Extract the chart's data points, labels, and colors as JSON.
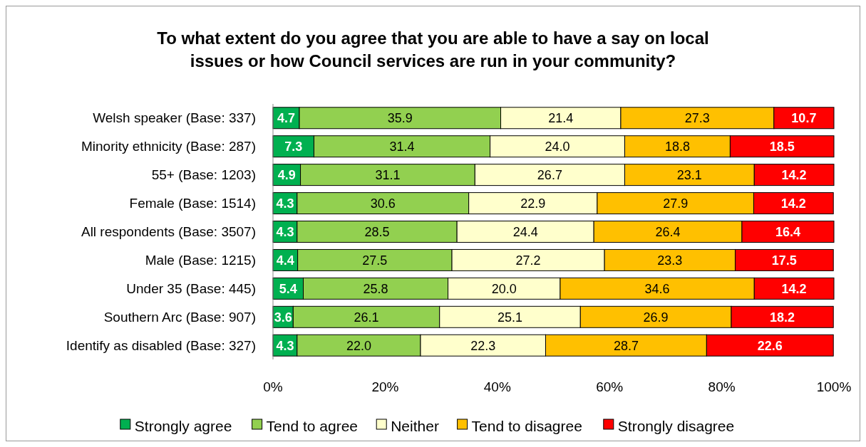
{
  "chart_data": {
    "type": "bar",
    "orientation": "horizontal",
    "stacked": true,
    "title": "To what extent do you agree that you are able to have a say on local issues or how Council services are run in your community?",
    "categories": [
      "Welsh speaker (Base: 337)",
      "Minority ethnicity (Base: 287)",
      "55+ (Base: 1203)",
      "Female (Base: 1514)",
      "All respondents (Base: 3507)",
      "Male (Base: 1215)",
      "Under 35 (Base: 445)",
      "Southern Arc (Base: 907)",
      "Identify as disabled (Base: 327)"
    ],
    "series": [
      {
        "name": "Strongly agree",
        "color": "#00b050",
        "values": [
          4.7,
          7.3,
          4.9,
          4.3,
          4.3,
          4.4,
          5.4,
          3.6,
          4.3
        ]
      },
      {
        "name": "Tend to agree",
        "color": "#92d050",
        "values": [
          35.9,
          31.4,
          31.1,
          30.6,
          28.5,
          27.5,
          25.8,
          26.1,
          22.0
        ]
      },
      {
        "name": "Neither",
        "color": "#ffffcc",
        "values": [
          21.4,
          24.0,
          26.7,
          22.9,
          24.4,
          27.2,
          20.0,
          25.1,
          22.3
        ]
      },
      {
        "name": "Tend to disagree",
        "color": "#ffc000",
        "values": [
          27.3,
          18.8,
          23.1,
          27.9,
          26.4,
          23.3,
          34.6,
          26.9,
          28.7
        ]
      },
      {
        "name": "Strongly disagree",
        "color": "#ff0000",
        "values": [
          10.7,
          18.5,
          14.2,
          14.2,
          16.4,
          17.5,
          14.2,
          18.2,
          22.6
        ]
      }
    ],
    "xlim": [
      0,
      100
    ],
    "xticks": [
      {
        "value": 0,
        "label": "0%"
      },
      {
        "value": 20,
        "label": "20%"
      },
      {
        "value": 40,
        "label": "40%"
      },
      {
        "value": 60,
        "label": "60%"
      },
      {
        "value": 80,
        "label": "80%"
      },
      {
        "value": 100,
        "label": "100%"
      }
    ],
    "value_labels": [
      [
        "4.7",
        "7.3",
        "4.9",
        "4.3",
        "4.3",
        "4.4",
        "5.4",
        "3.6",
        "4.3"
      ],
      [
        "35.9",
        "31.4",
        "31.1",
        "30.6",
        "28.5",
        "27.5",
        "25.8",
        "26.1",
        "22.0"
      ],
      [
        "21.4",
        "24.0",
        "26.7",
        "22.9",
        "24.4",
        "27.2",
        "20.0",
        "25.1",
        "22.3"
      ],
      [
        "27.3",
        "18.8",
        "23.1",
        "27.9",
        "26.4",
        "23.3",
        "34.6",
        "26.9",
        "28.7"
      ],
      [
        "10.7",
        "18.5",
        "14.2",
        "14.2",
        "16.4",
        "17.5",
        "14.2",
        "18.2",
        "22.6"
      ]
    ],
    "legend": "bottom",
    "grid": false
  }
}
